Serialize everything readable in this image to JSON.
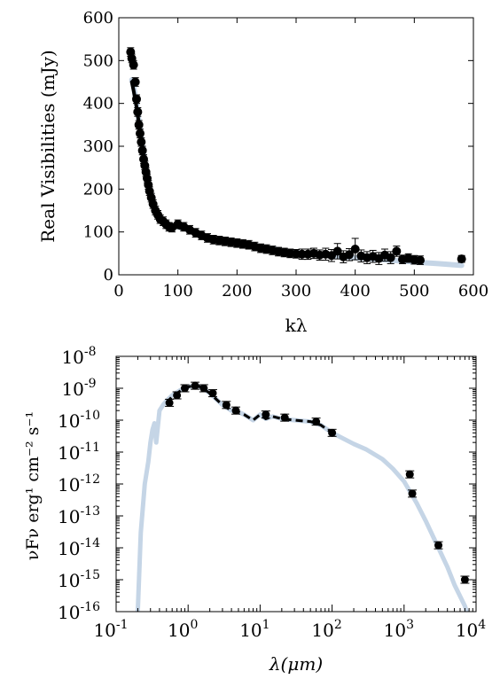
{
  "chart_data": [
    {
      "type": "scatter",
      "xlabel": "kλ",
      "ylabel": "Real Visibilities (mJy)",
      "xlim": [
        0,
        600
      ],
      "ylim": [
        0,
        600
      ],
      "xticks": [
        "0",
        "100",
        "200",
        "300",
        "400",
        "500",
        "600"
      ],
      "yticks": [
        "0",
        "100",
        "200",
        "300",
        "400",
        "500",
        "600"
      ],
      "series": [
        {
          "kind": "points",
          "color": "#000000",
          "x": [
            20,
            22,
            25,
            28,
            30,
            32,
            34,
            36,
            38,
            40,
            42,
            44,
            46,
            48,
            50,
            52,
            55,
            58,
            62,
            66,
            70,
            75,
            80,
            85,
            90,
            100,
            110,
            120,
            130,
            140,
            150,
            160,
            170,
            180,
            190,
            200,
            210,
            220,
            230,
            240,
            250,
            260,
            270,
            280,
            290,
            300,
            310,
            320,
            330,
            340,
            350,
            360,
            370,
            380,
            390,
            400,
            410,
            420,
            430,
            440,
            450,
            460,
            470,
            480,
            490,
            500,
            510,
            580
          ],
          "y": [
            520,
            505,
            490,
            450,
            410,
            380,
            350,
            330,
            310,
            290,
            270,
            255,
            240,
            225,
            210,
            195,
            180,
            165,
            150,
            140,
            130,
            125,
            118,
            112,
            110,
            118,
            112,
            105,
            98,
            92,
            86,
            82,
            80,
            78,
            76,
            74,
            72,
            70,
            66,
            62,
            60,
            57,
            54,
            52,
            50,
            49,
            48,
            48,
            50,
            46,
            48,
            45,
            55,
            42,
            47,
            60,
            44,
            40,
            43,
            38,
            46,
            40,
            55,
            36,
            39,
            35,
            34,
            37
          ],
          "yerr": [
            10,
            10,
            10,
            10,
            10,
            10,
            10,
            10,
            10,
            10,
            10,
            10,
            10,
            10,
            10,
            10,
            10,
            10,
            10,
            10,
            10,
            10,
            10,
            10,
            10,
            10,
            10,
            10,
            10,
            10,
            10,
            10,
            10,
            10,
            10,
            10,
            10,
            10,
            10,
            10,
            10,
            10,
            10,
            10,
            10,
            10,
            12,
            12,
            12,
            12,
            14,
            14,
            18,
            14,
            14,
            25,
            14,
            14,
            14,
            14,
            14,
            14,
            12,
            10,
            10,
            10,
            10,
            8
          ]
        },
        {
          "kind": "model",
          "color": "#c5d5e6",
          "x": [
            22,
            25,
            30,
            35,
            40,
            45,
            50,
            55,
            60,
            65,
            70,
            75,
            80,
            90,
            100,
            110,
            120,
            130,
            140,
            150,
            160,
            170,
            180,
            190,
            200,
            220,
            240,
            260,
            280,
            300,
            320,
            340,
            360,
            380,
            400,
            420,
            440,
            460,
            480,
            500,
            520,
            540,
            560,
            580
          ],
          "y": [
            455,
            440,
            400,
            350,
            300,
            255,
            215,
            185,
            160,
            145,
            133,
            125,
            120,
            115,
            112,
            108,
            104,
            98,
            92,
            86,
            81,
            78,
            76,
            75,
            74,
            71,
            66,
            61,
            56,
            52,
            48,
            46,
            44,
            42,
            40,
            38,
            36,
            34,
            32,
            30,
            28,
            26,
            24,
            22
          ]
        },
        {
          "kind": "model",
          "color": "#000000",
          "x": [
            22,
            25,
            30,
            35,
            40,
            45,
            50,
            55,
            60,
            65,
            70,
            75,
            80,
            90,
            100,
            110,
            120
          ],
          "y": [
            450,
            430,
            392,
            345,
            296,
            252,
            212,
            183,
            158,
            143,
            132,
            124,
            119,
            114,
            111,
            107,
            103
          ]
        }
      ]
    },
    {
      "type": "scatter",
      "xlabel": "λ(μm)",
      "ylabel": "νFν erg¹ cm⁻² s⁻¹",
      "xscale": "log",
      "yscale": "log",
      "xlim": [
        0.1,
        10000
      ],
      "ylim": [
        1e-16,
        1e-08
      ],
      "xticks": [
        "10-1",
        "100",
        "101",
        "102",
        "103",
        "104"
      ],
      "yticks": [
        "10-8",
        "10-9",
        "10-10",
        "10-11",
        "10-12",
        "10-13",
        "10-14",
        "10-15",
        "10-16"
      ],
      "series": [
        {
          "kind": "model",
          "color": "#c5d5e6",
          "x": [
            0.2,
            0.22,
            0.25,
            0.28,
            0.3,
            0.32,
            0.34,
            0.36,
            0.4,
            0.45,
            0.5,
            0.6,
            0.8,
            1.0,
            1.3,
            1.6,
            2.0,
            3.0,
            4.0,
            5.0,
            6.0,
            8.0,
            10,
            12,
            15,
            20,
            30,
            50,
            70,
            100,
            200,
            300,
            500,
            700,
            1000,
            1500,
            2000,
            3000,
            4000,
            5000,
            7000,
            8000
          ],
          "y": [
            1e-16,
            3e-14,
            1e-12,
            5e-12,
            2e-11,
            5e-11,
            8e-11,
            2e-11,
            2e-10,
            3e-10,
            4e-10,
            6e-10,
            9e-10,
            1.1e-09,
            1.25e-09,
            1e-09,
            7e-10,
            3e-10,
            2e-10,
            1.8e-10,
            1.5e-10,
            1e-10,
            1.5e-10,
            1.1e-10,
            1.3e-10,
            1.1e-10,
            1e-10,
            9e-11,
            7e-11,
            4e-11,
            1.8e-11,
            1.2e-11,
            6e-12,
            3e-12,
            1.2e-12,
            2.5e-13,
            7e-14,
            1e-14,
            2.5e-15,
            7e-16,
            1.5e-16,
            6e-17
          ]
        },
        {
          "kind": "dashed",
          "color": "#000000",
          "x": [
            0.5,
            0.6,
            0.8,
            1.0,
            1.3,
            1.6,
            2.0,
            3.0,
            4.0,
            5.0,
            6.0,
            8.0,
            10,
            12,
            15,
            20,
            30,
            50,
            70,
            100
          ],
          "y": [
            3.5e-10,
            5.5e-10,
            8.5e-10,
            1.1e-09,
            1.25e-09,
            1e-09,
            7e-10,
            3e-10,
            2e-10,
            1.8e-10,
            1.5e-10,
            1e-10,
            1.5e-10,
            1.1e-10,
            1.3e-10,
            1.1e-10,
            1e-10,
            9e-11,
            7e-11,
            4e-11
          ]
        },
        {
          "kind": "points",
          "color": "#000000",
          "x": [
            0.55,
            0.7,
            0.9,
            1.25,
            1.65,
            2.2,
            3.4,
            4.6,
            12,
            22,
            60,
            100,
            1200,
            1300,
            3000,
            7000
          ],
          "y": [
            3.5e-10,
            6e-10,
            1e-09,
            1.2e-09,
            1e-09,
            7e-10,
            3e-10,
            2e-10,
            1.5e-10,
            1.2e-10,
            9e-11,
            4e-11,
            2e-12,
            5e-13,
            1.2e-14,
            1e-15
          ]
        }
      ]
    }
  ]
}
